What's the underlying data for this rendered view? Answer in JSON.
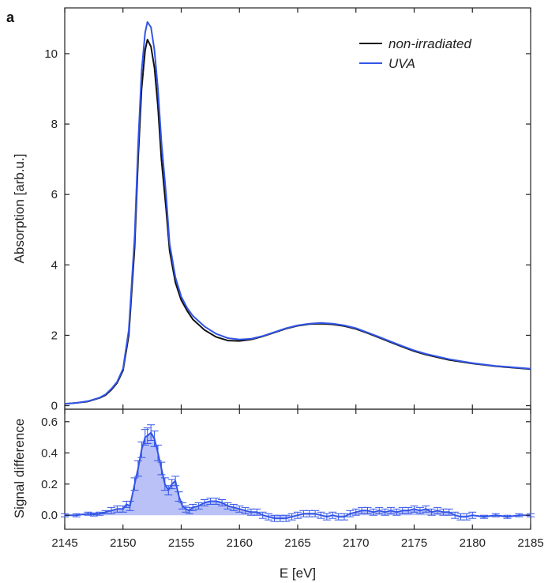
{
  "panel_label": "a",
  "chart_data": [
    {
      "type": "line",
      "ylabel": "Absorption [arb.u.]",
      "xlim": [
        2145,
        2185
      ],
      "ylim": [
        -0.1,
        11.3
      ],
      "y_ticks": [
        "0",
        "2",
        "4",
        "6",
        "8",
        "10"
      ],
      "grid": false,
      "legend_position": "top-right",
      "series": [
        {
          "name": "non-irradiated",
          "color": "#111111",
          "x": [
            2145,
            2146,
            2147,
            2148,
            2148.5,
            2149,
            2149.5,
            2150,
            2150.5,
            2151,
            2151.3,
            2151.6,
            2151.9,
            2152.1,
            2152.4,
            2152.7,
            2153,
            2153.3,
            2153.7,
            2154,
            2154.5,
            2155,
            2155.5,
            2156,
            2157,
            2158,
            2159,
            2160,
            2161,
            2162,
            2163,
            2164,
            2165,
            2166,
            2167,
            2168,
            2169,
            2170,
            2171,
            2172,
            2173,
            2174,
            2175,
            2176,
            2178,
            2180,
            2182,
            2185
          ],
          "y": [
            0.05,
            0.08,
            0.12,
            0.22,
            0.3,
            0.45,
            0.65,
            1.0,
            2.0,
            4.5,
            7.0,
            9.0,
            10.1,
            10.4,
            10.2,
            9.6,
            8.5,
            7.0,
            5.6,
            4.4,
            3.5,
            3.0,
            2.7,
            2.45,
            2.15,
            1.95,
            1.85,
            1.84,
            1.88,
            1.97,
            2.08,
            2.19,
            2.27,
            2.32,
            2.33,
            2.31,
            2.26,
            2.18,
            2.06,
            1.93,
            1.8,
            1.67,
            1.55,
            1.45,
            1.3,
            1.2,
            1.12,
            1.04
          ]
        },
        {
          "name": "UVA",
          "color": "#3355e8",
          "x": [
            2145,
            2146,
            2147,
            2148,
            2148.5,
            2149,
            2149.5,
            2150,
            2150.5,
            2151,
            2151.3,
            2151.6,
            2151.9,
            2152.1,
            2152.4,
            2152.7,
            2153,
            2153.3,
            2153.7,
            2154,
            2154.5,
            2155,
            2155.5,
            2156,
            2157,
            2158,
            2159,
            2160,
            2161,
            2162,
            2163,
            2164,
            2165,
            2166,
            2167,
            2168,
            2169,
            2170,
            2171,
            2172,
            2173,
            2174,
            2175,
            2176,
            2178,
            2180,
            2182,
            2185
          ],
          "y": [
            0.05,
            0.08,
            0.13,
            0.23,
            0.32,
            0.48,
            0.68,
            1.05,
            2.15,
            4.8,
            7.4,
            9.5,
            10.6,
            10.9,
            10.75,
            10.1,
            9.0,
            7.5,
            6.0,
            4.6,
            3.65,
            3.1,
            2.78,
            2.55,
            2.25,
            2.04,
            1.92,
            1.88,
            1.9,
            1.98,
            2.09,
            2.2,
            2.28,
            2.33,
            2.35,
            2.33,
            2.28,
            2.2,
            2.08,
            1.95,
            1.82,
            1.69,
            1.57,
            1.47,
            1.32,
            1.21,
            1.13,
            1.05
          ]
        }
      ]
    },
    {
      "type": "area",
      "ylabel": "Signal difference",
      "xlabel": "E [eV]",
      "xlim": [
        2145,
        2185
      ],
      "ylim": [
        -0.09,
        0.68
      ],
      "y_ticks": [
        "0.0",
        "0.2",
        "0.4",
        "0.6"
      ],
      "x_ticks": [
        "2145",
        "2150",
        "2155",
        "2160",
        "2165",
        "2170",
        "2175",
        "2180",
        "2185"
      ],
      "grid": false,
      "series": [
        {
          "color": "#3355e8",
          "fill": "#b9c1f7",
          "x": [
            2145,
            2146,
            2147,
            2147.5,
            2148,
            2148.5,
            2149,
            2149.5,
            2150,
            2150.3,
            2150.6,
            2151,
            2151.3,
            2151.6,
            2151.9,
            2152.1,
            2152.4,
            2152.7,
            2153,
            2153.3,
            2153.6,
            2153.9,
            2154.2,
            2154.5,
            2154.8,
            2155.1,
            2155.4,
            2155.7,
            2156,
            2156.5,
            2157,
            2157.5,
            2158,
            2158.5,
            2159,
            2159.5,
            2160,
            2160.5,
            2161,
            2161.5,
            2162,
            2162.5,
            2163,
            2163.5,
            2164,
            2164.5,
            2165,
            2165.5,
            2166,
            2166.5,
            2167,
            2167.5,
            2168,
            2168.5,
            2169,
            2169.5,
            2170,
            2170.5,
            2171,
            2171.5,
            2172,
            2172.5,
            2173,
            2173.5,
            2174,
            2174.5,
            2175,
            2175.5,
            2176,
            2176.5,
            2177,
            2177.5,
            2178,
            2178.5,
            2179,
            2179.5,
            2180,
            2181,
            2182,
            2183,
            2184,
            2185
          ],
          "y": [
            0.0,
            0.0,
            0.01,
            0.005,
            0.01,
            0.02,
            0.03,
            0.04,
            0.04,
            0.07,
            0.06,
            0.2,
            0.3,
            0.42,
            0.5,
            0.51,
            0.53,
            0.49,
            0.4,
            0.3,
            0.2,
            0.16,
            0.2,
            0.22,
            0.12,
            0.06,
            0.04,
            0.03,
            0.05,
            0.06,
            0.08,
            0.09,
            0.09,
            0.08,
            0.06,
            0.05,
            0.04,
            0.03,
            0.02,
            0.02,
            0.0,
            -0.01,
            -0.02,
            -0.02,
            -0.02,
            -0.01,
            0.0,
            0.01,
            0.01,
            0.01,
            0.0,
            -0.01,
            0.0,
            -0.01,
            -0.01,
            0.01,
            0.02,
            0.03,
            0.03,
            0.02,
            0.03,
            0.02,
            0.03,
            0.02,
            0.03,
            0.03,
            0.04,
            0.03,
            0.04,
            0.02,
            0.03,
            0.02,
            0.02,
            0.0,
            -0.01,
            -0.01,
            0.0,
            -0.01,
            0.0,
            -0.01,
            0.0,
            0.0
          ],
          "error": [
            0.01,
            0.01,
            0.01,
            0.01,
            0.01,
            0.01,
            0.02,
            0.02,
            0.02,
            0.02,
            0.03,
            0.04,
            0.05,
            0.05,
            0.05,
            0.05,
            0.05,
            0.05,
            0.05,
            0.04,
            0.04,
            0.03,
            0.03,
            0.03,
            0.03,
            0.02,
            0.02,
            0.02,
            0.02,
            0.02,
            0.02,
            0.02,
            0.02,
            0.02,
            0.02,
            0.02,
            0.02,
            0.02,
            0.02,
            0.02,
            0.02,
            0.02,
            0.02,
            0.02,
            0.02,
            0.02,
            0.02,
            0.02,
            0.02,
            0.02,
            0.02,
            0.02,
            0.02,
            0.02,
            0.02,
            0.02,
            0.02,
            0.02,
            0.02,
            0.02,
            0.02,
            0.02,
            0.02,
            0.02,
            0.02,
            0.02,
            0.02,
            0.02,
            0.02,
            0.02,
            0.02,
            0.02,
            0.02,
            0.02,
            0.02,
            0.02,
            0.02,
            0.01,
            0.01,
            0.01,
            0.01,
            0.01
          ]
        }
      ]
    }
  ]
}
